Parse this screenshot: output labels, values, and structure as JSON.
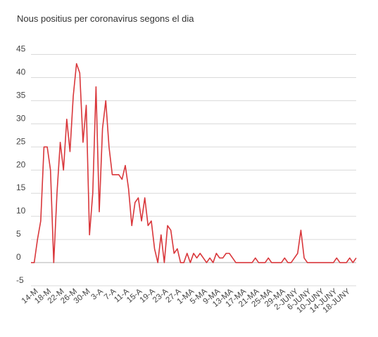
{
  "chart_data": {
    "type": "line",
    "title": "Nous positius per coronavirus segons el dia",
    "xlabel": "",
    "ylabel": "",
    "ylim": [
      -5,
      45
    ],
    "yticks": [
      45,
      40,
      35,
      30,
      25,
      20,
      15,
      10,
      5,
      0,
      -5
    ],
    "grid": true,
    "line_color": "#d9373b",
    "xtick_labels": [
      "14-M",
      "18-M",
      "22-M",
      "26-M",
      "30-M",
      "3-A",
      "7-A",
      "11-A",
      "15-A",
      "19-A",
      "23-A",
      "27-A",
      "1-MA",
      "5-MA",
      "9-MA",
      "13-MA",
      "17-MA",
      "21-MA",
      "25-MA",
      "29-MA",
      "2-JUNY",
      "6-JUNY",
      "10-JUNY",
      "14-JUNY",
      "18-JUNY"
    ],
    "start_date": "2020-03-13",
    "values": [
      0,
      0,
      5,
      9,
      25,
      25,
      20,
      0,
      15,
      26,
      20,
      31,
      24,
      36,
      43,
      41,
      26,
      34,
      6,
      15,
      38,
      11,
      29,
      35,
      25,
      19,
      19,
      19,
      18,
      21,
      16,
      8,
      13,
      14,
      9,
      14,
      8,
      9,
      3,
      0,
      6,
      0,
      8,
      7,
      2,
      3,
      0,
      0,
      2,
      0,
      2,
      1,
      2,
      1,
      0,
      1,
      0,
      2,
      1,
      1,
      2,
      2,
      1,
      0,
      0,
      0,
      0,
      0,
      0,
      1,
      0,
      0,
      0,
      1,
      0,
      0,
      0,
      0,
      1,
      0,
      0,
      1,
      2,
      7,
      1,
      0,
      0,
      0,
      0,
      0,
      0,
      0,
      0,
      0,
      1,
      0,
      0,
      0,
      1,
      0,
      1
    ]
  }
}
